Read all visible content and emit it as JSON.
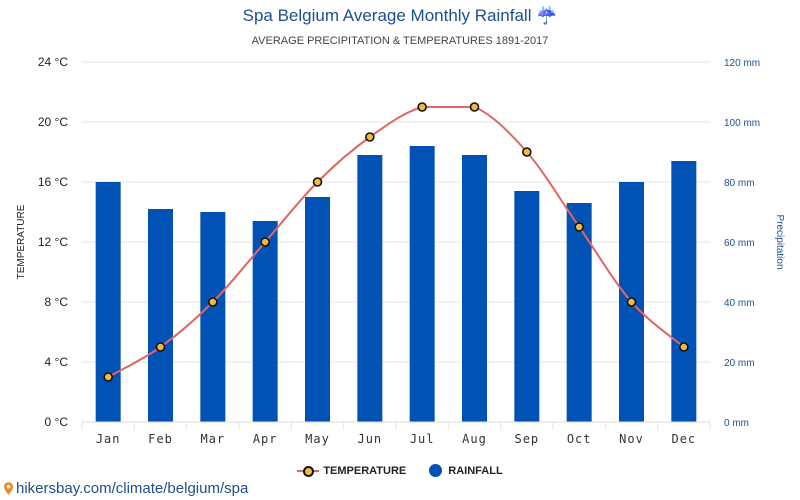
{
  "chart_data": {
    "type": "bar+line",
    "title": "Spa Belgium Average Monthly Rainfall ☔",
    "subtitle": "AVERAGE PRECIPITATION & TEMPERATURES 1891-2017",
    "categories": [
      "Jan",
      "Feb",
      "Mar",
      "Apr",
      "May",
      "Jun",
      "Jul",
      "Aug",
      "Sep",
      "Oct",
      "Nov",
      "Dec"
    ],
    "series": [
      {
        "name": "TEMPERATURE",
        "kind": "line",
        "axis": "left",
        "unit": "°C",
        "values": [
          3,
          5,
          8,
          12,
          16,
          19,
          21,
          21,
          18,
          13,
          8,
          5
        ]
      },
      {
        "name": "RAINFALL",
        "kind": "bar",
        "axis": "right",
        "unit": "mm",
        "values": [
          80,
          71,
          70,
          67,
          75,
          89,
          92,
          89,
          77,
          73,
          80,
          87
        ]
      }
    ],
    "left_axis": {
      "label": "TEMPERATURE",
      "min": 0,
      "max": 24,
      "ticks": [
        "0 °C",
        "4 °C",
        "8 °C",
        "12 °C",
        "16 °C",
        "20 °C",
        "24 °C"
      ]
    },
    "right_axis": {
      "label": "Precipitation",
      "min": 0,
      "max": 120,
      "ticks": [
        "0 mm",
        "20 mm",
        "40 mm",
        "60 mm",
        "80 mm",
        "100 mm",
        "120 mm"
      ]
    },
    "grid": true,
    "legend_position": "bottom",
    "colors": {
      "bar": "#0052b4",
      "line": "#e06666",
      "marker_fill": "#f5b942",
      "marker_stroke": "#111111"
    }
  },
  "footer": {
    "link_text": "hikersbay.com/climate/belgium/spa"
  }
}
